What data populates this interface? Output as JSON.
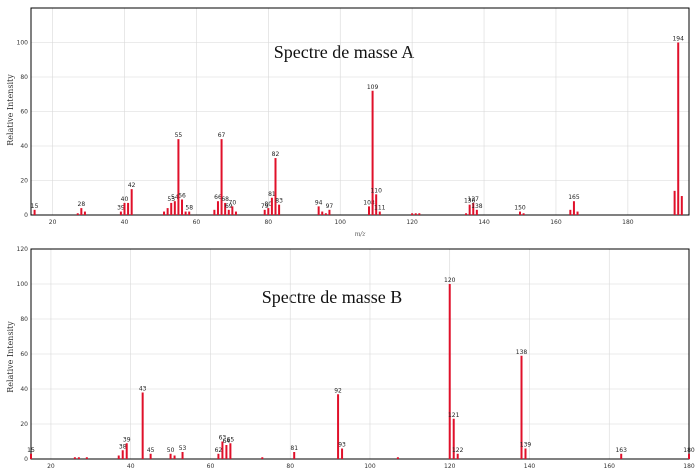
{
  "chart_data": [
    {
      "type": "bar",
      "title": "Spectre de masse A",
      "xlabel": "m/z",
      "ylabel": "Relative Intensity",
      "xlim": [
        14,
        197
      ],
      "ylim": [
        0,
        120
      ],
      "xticks": [
        20,
        40,
        60,
        80,
        100,
        120,
        140,
        160,
        180
      ],
      "yticks": [
        0,
        20,
        40,
        60,
        80,
        100
      ],
      "grid": true,
      "peaks": [
        {
          "x": 15,
          "y": 3,
          "label": "15"
        },
        {
          "x": 27,
          "y": 1
        },
        {
          "x": 28,
          "y": 4,
          "label": "28"
        },
        {
          "x": 29,
          "y": 2
        },
        {
          "x": 39,
          "y": 2,
          "label": "39"
        },
        {
          "x": 40,
          "y": 7,
          "label": "40"
        },
        {
          "x": 41,
          "y": 7
        },
        {
          "x": 42,
          "y": 15,
          "label": "42"
        },
        {
          "x": 51,
          "y": 2
        },
        {
          "x": 52,
          "y": 4
        },
        {
          "x": 53,
          "y": 7,
          "label": "53"
        },
        {
          "x": 54,
          "y": 8,
          "label": "54"
        },
        {
          "x": 55,
          "y": 44,
          "label": "55"
        },
        {
          "x": 56,
          "y": 9,
          "label": "56"
        },
        {
          "x": 57,
          "y": 2
        },
        {
          "x": 58,
          "y": 2,
          "label": "58"
        },
        {
          "x": 65,
          "y": 3
        },
        {
          "x": 66,
          "y": 8,
          "label": "66"
        },
        {
          "x": 67,
          "y": 44,
          "label": "67"
        },
        {
          "x": 68,
          "y": 7,
          "label": "68"
        },
        {
          "x": 69,
          "y": 3,
          "label": "69"
        },
        {
          "x": 70,
          "y": 5,
          "label": "70"
        },
        {
          "x": 71,
          "y": 2
        },
        {
          "x": 79,
          "y": 3,
          "label": "79"
        },
        {
          "x": 80,
          "y": 4,
          "label": "80"
        },
        {
          "x": 81,
          "y": 10,
          "label": "81"
        },
        {
          "x": 82,
          "y": 33,
          "label": "82"
        },
        {
          "x": 83,
          "y": 6,
          "label": "83"
        },
        {
          "x": 94,
          "y": 5,
          "label": "94"
        },
        {
          "x": 95,
          "y": 2
        },
        {
          "x": 96,
          "y": 1
        },
        {
          "x": 97,
          "y": 3,
          "label": "97"
        },
        {
          "x": 108,
          "y": 5,
          "label": "108"
        },
        {
          "x": 109,
          "y": 72,
          "label": "109"
        },
        {
          "x": 110,
          "y": 12,
          "label": "110"
        },
        {
          "x": 111,
          "y": 2,
          "label": "111"
        },
        {
          "x": 120,
          "y": 1
        },
        {
          "x": 121,
          "y": 1
        },
        {
          "x": 122,
          "y": 1
        },
        {
          "x": 135,
          "y": 1
        },
        {
          "x": 136,
          "y": 6,
          "label": "136"
        },
        {
          "x": 137,
          "y": 7,
          "label": "137"
        },
        {
          "x": 138,
          "y": 3,
          "label": "138"
        },
        {
          "x": 150,
          "y": 2,
          "label": "150"
        },
        {
          "x": 151,
          "y": 1
        },
        {
          "x": 164,
          "y": 3
        },
        {
          "x": 165,
          "y": 8,
          "label": "165"
        },
        {
          "x": 166,
          "y": 2
        },
        {
          "x": 193,
          "y": 14
        },
        {
          "x": 194,
          "y": 100,
          "label": "194"
        },
        {
          "x": 195,
          "y": 11
        }
      ]
    },
    {
      "type": "bar",
      "title": "Spectre de masse B",
      "xlabel": "",
      "ylabel": "Relative Intensity",
      "xlim": [
        15,
        180
      ],
      "ylim": [
        0,
        120
      ],
      "xticks": [
        20,
        40,
        60,
        80,
        100,
        120,
        140,
        160,
        180
      ],
      "yticks": [
        0,
        20,
        40,
        60,
        80,
        100,
        120
      ],
      "grid": true,
      "peaks": [
        {
          "x": 15,
          "y": 3,
          "label": "15"
        },
        {
          "x": 26,
          "y": 1
        },
        {
          "x": 27,
          "y": 1
        },
        {
          "x": 29,
          "y": 1
        },
        {
          "x": 37,
          "y": 2
        },
        {
          "x": 38,
          "y": 5,
          "label": "38"
        },
        {
          "x": 39,
          "y": 9,
          "label": "39"
        },
        {
          "x": 43,
          "y": 38,
          "label": "43"
        },
        {
          "x": 45,
          "y": 3,
          "label": "45"
        },
        {
          "x": 50,
          "y": 3,
          "label": "50"
        },
        {
          "x": 51,
          "y": 2
        },
        {
          "x": 53,
          "y": 4,
          "label": "53"
        },
        {
          "x": 62,
          "y": 3,
          "label": "62"
        },
        {
          "x": 63,
          "y": 10,
          "label": "63"
        },
        {
          "x": 64,
          "y": 8,
          "label": "64"
        },
        {
          "x": 65,
          "y": 9,
          "label": "65"
        },
        {
          "x": 73,
          "y": 1
        },
        {
          "x": 81,
          "y": 4,
          "label": "81"
        },
        {
          "x": 92,
          "y": 37,
          "label": "92"
        },
        {
          "x": 93,
          "y": 6,
          "label": "93"
        },
        {
          "x": 107,
          "y": 1
        },
        {
          "x": 120,
          "y": 100,
          "label": "120"
        },
        {
          "x": 121,
          "y": 23,
          "label": "121"
        },
        {
          "x": 122,
          "y": 3,
          "label": "122"
        },
        {
          "x": 138,
          "y": 59,
          "label": "138"
        },
        {
          "x": 139,
          "y": 6,
          "label": "139"
        },
        {
          "x": 163,
          "y": 3,
          "label": "163"
        },
        {
          "x": 180,
          "y": 3,
          "label": "180"
        }
      ]
    }
  ]
}
